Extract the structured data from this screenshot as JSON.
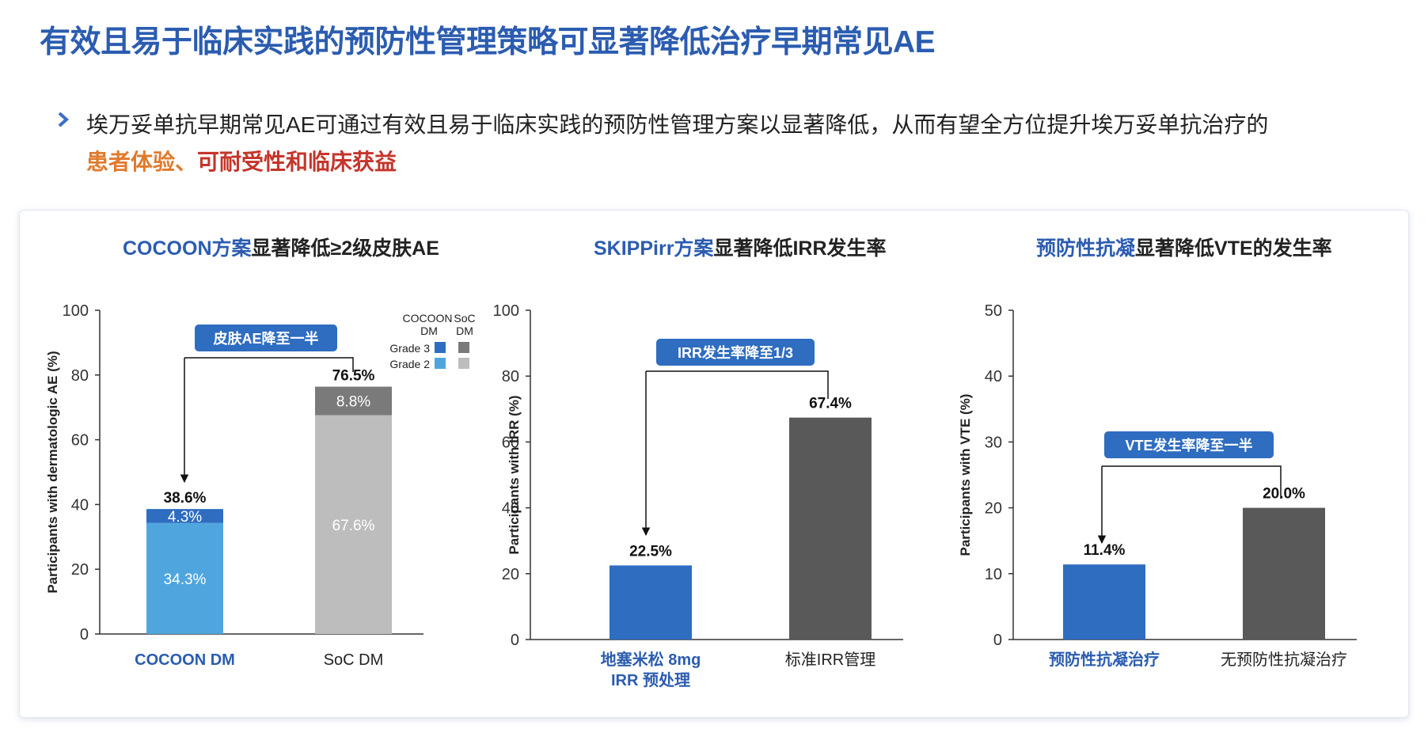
{
  "page": {
    "title": "有效且易于临床实践的预防性管理策略可显著降低治疗早期常见AE",
    "bullet_icon": "chevron-right-icon",
    "bullet_line1": "埃万妥单抗早期常见AE可通过有效且易于临床实践的预防性管理方案以显著降低，从而有望全方位提升埃万妥单抗治疗的",
    "bullet_line2_orange": "患者体验、",
    "bullet_line2_red": "可耐受性和临床获益",
    "colors": {
      "title_blue": "#2B5CB0",
      "accent_blue": "#2E6DC0",
      "orange": "#E07B2E",
      "red": "#C4352B"
    }
  },
  "chart_data": [
    {
      "type": "bar",
      "stacked": true,
      "title_highlight": "COCOON方案",
      "title_rest": "显著降低≥2级皮肤AE",
      "ylabel": "Participants with dermatologic AE (%)",
      "ylim": [
        0,
        100
      ],
      "yticks": [
        "0",
        "20",
        "40",
        "60",
        "80",
        "100"
      ],
      "categories": [
        "COCOON DM",
        "SoC DM"
      ],
      "series": [
        {
          "name": "Grade 2",
          "values": [
            34.3,
            67.6
          ],
          "labels": [
            "34.3%",
            "67.6%"
          ],
          "colors": [
            "#4FA6DE",
            "#BDBDBD"
          ]
        },
        {
          "name": "Grade 3",
          "values": [
            4.3,
            8.8
          ],
          "labels": [
            "4.3%",
            "8.8%"
          ],
          "colors": [
            "#2E6DC0",
            "#7A7A7A"
          ]
        }
      ],
      "totals": [
        "38.6%",
        "76.5%"
      ],
      "legend": {
        "col1": "COCOON DM",
        "col2": "SoC DM",
        "rows": [
          "Grade 3",
          "Grade 2"
        ]
      },
      "annotation": "皮肤AE降至一半"
    },
    {
      "type": "bar",
      "title_highlight": "SKIPPirr方案",
      "title_rest": "显著降低IRR发生率",
      "ylabel": "Participants with IRR (%)",
      "ylim": [
        0,
        100
      ],
      "yticks": [
        "0",
        "20",
        "40",
        "60",
        "80",
        "100"
      ],
      "categories": [
        "地塞米松 8mg",
        "标准IRR管理"
      ],
      "category_line2": [
        "IRR 预处理",
        ""
      ],
      "values": [
        22.5,
        67.4
      ],
      "labels": [
        "22.5%",
        "67.4%"
      ],
      "colors": [
        "#2E6DC0",
        "#595959"
      ],
      "annotation": "IRR发生率降至1/3"
    },
    {
      "type": "bar",
      "title_highlight": "预防性抗凝",
      "title_rest": "显著降低VTE的发生率",
      "ylabel": "Participants with VTE (%)",
      "ylim": [
        0,
        50
      ],
      "yticks": [
        "0",
        "10",
        "20",
        "30",
        "40",
        "50"
      ],
      "categories": [
        "预防性抗凝治疗",
        "无预防性抗凝治疗"
      ],
      "values": [
        11.4,
        20.0
      ],
      "labels": [
        "11.4%",
        "20.0%"
      ],
      "colors": [
        "#2E6DC0",
        "#595959"
      ],
      "annotation": "VTE发生率降至一半"
    }
  ]
}
